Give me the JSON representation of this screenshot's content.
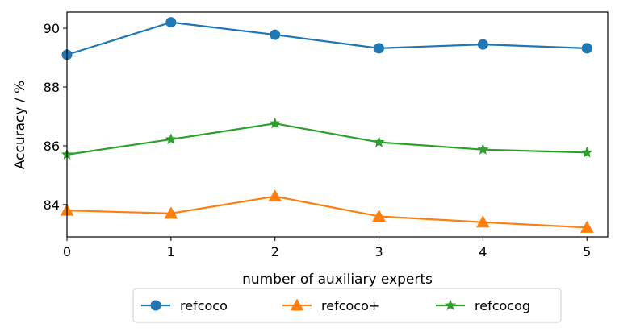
{
  "chart_data": {
    "type": "line",
    "title": "",
    "xlabel": "number of auxiliary experts",
    "ylabel": "Accuracy / %",
    "x": [
      0,
      1,
      2,
      3,
      4,
      5
    ],
    "xlim": [
      0,
      5.2
    ],
    "ylim": [
      82.9,
      90.55
    ],
    "xticks": [
      "0",
      "1",
      "2",
      "3",
      "4",
      "5"
    ],
    "yticks": [
      "84",
      "86",
      "88",
      "90"
    ],
    "ytick_values": [
      84,
      86,
      88,
      90
    ],
    "grid": false,
    "legend_position": "bottom-center outside",
    "series": [
      {
        "name": "refcoco",
        "color": "#1f77b4",
        "marker": "circle",
        "values": [
          89.1,
          90.2,
          89.78,
          89.32,
          89.45,
          89.32
        ]
      },
      {
        "name": "refcoco+",
        "color": "#ff7f0e",
        "marker": "triangle",
        "values": [
          83.8,
          83.7,
          84.28,
          83.6,
          83.4,
          83.22
        ]
      },
      {
        "name": "refcocog",
        "color": "#2ca02c",
        "marker": "star",
        "values": [
          85.7,
          86.22,
          86.76,
          86.12,
          85.87,
          85.77
        ]
      }
    ]
  }
}
